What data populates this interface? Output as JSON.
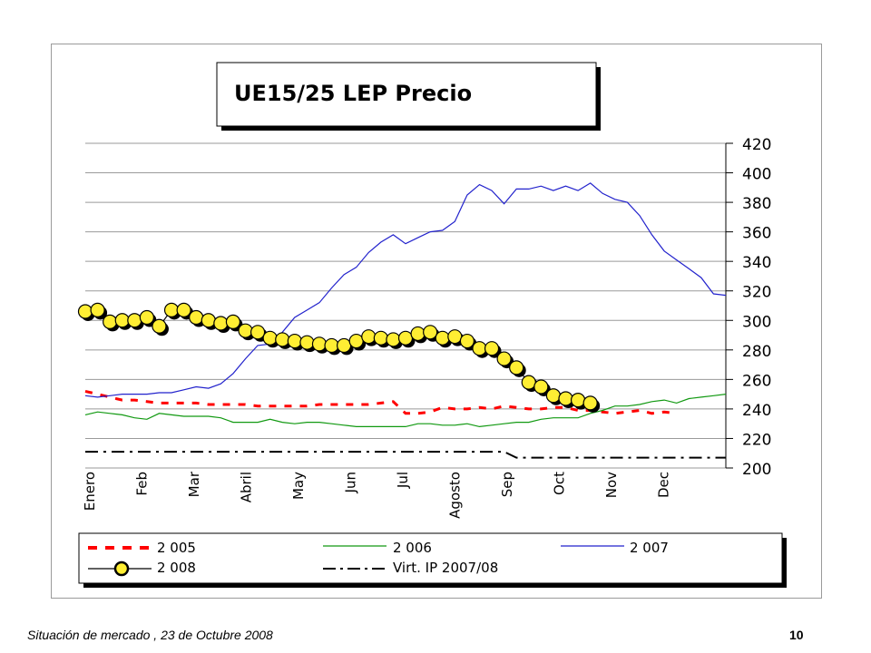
{
  "footer": {
    "text": "Situación de mercado , 23 de  Octubre  2008",
    "page": "10"
  },
  "colors": {
    "s2005": "#ff0000",
    "s2006": "#119911",
    "s2007": "#2222cc",
    "s2008_fill": "#ffee33",
    "virt": "#000000"
  },
  "chart_data": {
    "type": "line",
    "title": "UE15/25 LEP Precio",
    "ylim": [
      200,
      420
    ],
    "yticks": [
      200,
      220,
      240,
      260,
      280,
      300,
      320,
      340,
      360,
      380,
      400,
      420
    ],
    "months": [
      "Enero",
      "Feb",
      "Mar",
      "Abril",
      "May",
      "Jun",
      "Jul",
      "Agosto",
      "Sep",
      "Oct",
      "Nov",
      "Dec"
    ],
    "legend": [
      "2 005",
      "2 006",
      "2 007",
      "2 008",
      "Virt. IP 2007/08"
    ],
    "series": [
      {
        "name": "2 005",
        "style": "dashed",
        "values": [
          252,
          250,
          248,
          246,
          246,
          245,
          244,
          244,
          244,
          244,
          243,
          243,
          243,
          243,
          242,
          242,
          242,
          242,
          242,
          243,
          243,
          243,
          243,
          243,
          244,
          245,
          237,
          237,
          238,
          241,
          240,
          240,
          241,
          240,
          242,
          241,
          240,
          240,
          241,
          241,
          239,
          239,
          238,
          237,
          238,
          239,
          237,
          238,
          237
        ]
      },
      {
        "name": "2 006",
        "style": "solid",
        "values": [
          236,
          238,
          237,
          236,
          234,
          233,
          237,
          236,
          235,
          235,
          235,
          234,
          231,
          231,
          231,
          233,
          231,
          230,
          231,
          231,
          230,
          229,
          228,
          228,
          228,
          228,
          228,
          230,
          230,
          229,
          229,
          230,
          228,
          229,
          230,
          231,
          231,
          233,
          234,
          234,
          234,
          237,
          239,
          242,
          242,
          243,
          245,
          246,
          244,
          247,
          248,
          249,
          250
        ]
      },
      {
        "name": "2 007",
        "style": "solid",
        "values": [
          249,
          248,
          249,
          250,
          250,
          250,
          251,
          251,
          253,
          255,
          254,
          257,
          264,
          274,
          283,
          284,
          292,
          302,
          307,
          312,
          322,
          331,
          336,
          346,
          353,
          358,
          352,
          356,
          360,
          361,
          367,
          385,
          392,
          388,
          379,
          389,
          389,
          391,
          388,
          391,
          388,
          393,
          386,
          382,
          380,
          371,
          358,
          347,
          341,
          335,
          329,
          318,
          317
        ]
      },
      {
        "name": "2 008",
        "style": "markers",
        "values": [
          306,
          307,
          299,
          300,
          300,
          302,
          296,
          307,
          307,
          302,
          300,
          298,
          299,
          293,
          292,
          288,
          287,
          286,
          285,
          284,
          283,
          283,
          286,
          289,
          288,
          287,
          288,
          291,
          292,
          288,
          289,
          286,
          281,
          281,
          274,
          268,
          258,
          255,
          249,
          247,
          246,
          244
        ]
      },
      {
        "name": "Virt. IP 2007/08",
        "style": "dashdot",
        "values": [
          211,
          211,
          211,
          211,
          211,
          211,
          211,
          211,
          211,
          211,
          211,
          211,
          211,
          211,
          211,
          211,
          211,
          211,
          211,
          211,
          211,
          211,
          211,
          211,
          211,
          211,
          211,
          211,
          211,
          211,
          211,
          211,
          211,
          211,
          211,
          207,
          207,
          207,
          207,
          207,
          207,
          207,
          207,
          207,
          207,
          207,
          207,
          207,
          207,
          207,
          207,
          207,
          207
        ]
      }
    ]
  }
}
